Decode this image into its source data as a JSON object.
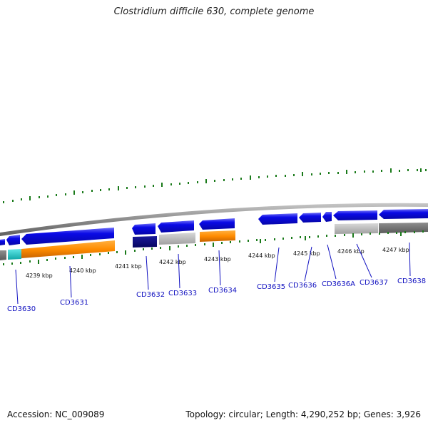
{
  "title": "Clostridium difficile 630, complete genome",
  "footer": {
    "accession": "Accession: NC_009089",
    "topology": "Topology: circular; Length: 4,290,252 bp; Genes: 3,926"
  },
  "colors": {
    "tick": "#1a7a1a",
    "backbone": "#8c8c8c",
    "gene_forward": "#0a0ae0",
    "label": "#1010c0",
    "orange": "#ff8c00",
    "navy": "#0a0a7a",
    "gray_light": "#b4b4b4",
    "gray_dark": "#6e6e6e",
    "cyan": "#19c8c8"
  },
  "kbp_labels": [
    "4239 kbp",
    "4240 kbp",
    "4241 kbp",
    "4242 kbp",
    "4243 kbp",
    "4244 kbp",
    "4245 kbp",
    "4246 kbp",
    "4247 kbp"
  ],
  "gene_labels": [
    "CD3630",
    "CD3631",
    "CD3632",
    "CD3633",
    "CD3634",
    "CD3635",
    "CD3636",
    "CD3636A",
    "CD3637",
    "CD3638"
  ]
}
